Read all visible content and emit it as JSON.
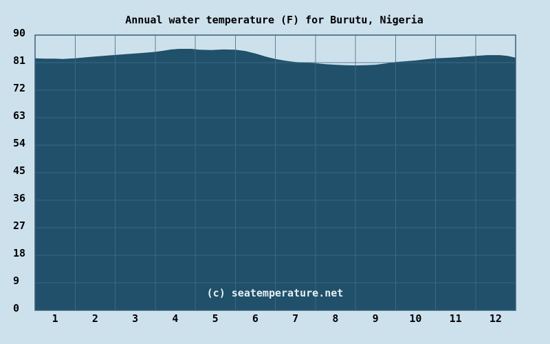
{
  "title": "Annual water temperature (F) for Burutu, Nigeria",
  "watermark": "(c) seatemperature.net",
  "colors": {
    "background": "#cde1ed",
    "area_fill": "#20506a",
    "grid_light": "#5d8096",
    "grid_dark": "#3d6983",
    "border": "#3a5f75",
    "label": "#000000",
    "watermark": "#e6eff5"
  },
  "chart_data": {
    "type": "area",
    "title": "Annual water temperature (F) for Burutu, Nigeria",
    "xlabel": "",
    "ylabel": "",
    "xlim": [
      0,
      12
    ],
    "ylim": [
      0,
      90
    ],
    "grid": true,
    "legend": false,
    "x_ticks": [
      1,
      2,
      3,
      4,
      5,
      6,
      7,
      8,
      9,
      10,
      11,
      12
    ],
    "y_ticks": [
      0,
      9,
      18,
      27,
      36,
      45,
      54,
      63,
      72,
      81,
      90
    ],
    "categories": [
      "1",
      "2",
      "3",
      "4",
      "5",
      "6",
      "7",
      "8",
      "9",
      "10",
      "11",
      "12"
    ],
    "monthly_values_f": [
      82.3,
      83.0,
      84.0,
      85.2,
      85.2,
      83.7,
      81.1,
      80.2,
      80.6,
      82.0,
      82.9,
      83.4
    ],
    "curve_points": [
      [
        0,
        82.4
      ],
      [
        0.25,
        82.3
      ],
      [
        0.5,
        82.3
      ],
      [
        0.7,
        82.2
      ],
      [
        0.9,
        82.35
      ],
      [
        1.0,
        82.4
      ],
      [
        1.25,
        82.7
      ],
      [
        1.5,
        83.0
      ],
      [
        1.75,
        83.25
      ],
      [
        2.0,
        83.5
      ],
      [
        2.25,
        83.75
      ],
      [
        2.5,
        84.0
      ],
      [
        2.75,
        84.25
      ],
      [
        3.0,
        84.5
      ],
      [
        3.2,
        84.9
      ],
      [
        3.4,
        85.3
      ],
      [
        3.6,
        85.5
      ],
      [
        3.9,
        85.5
      ],
      [
        4.1,
        85.2
      ],
      [
        4.4,
        85.1
      ],
      [
        4.7,
        85.3
      ],
      [
        5.0,
        85.2
      ],
      [
        5.25,
        84.8
      ],
      [
        5.5,
        84.0
      ],
      [
        5.75,
        83.0
      ],
      [
        6.0,
        82.2
      ],
      [
        6.25,
        81.6
      ],
      [
        6.5,
        81.2
      ],
      [
        6.75,
        81.0
      ],
      [
        7.0,
        80.8
      ],
      [
        7.25,
        80.5
      ],
      [
        7.5,
        80.3
      ],
      [
        7.75,
        80.15
      ],
      [
        8.0,
        80.1
      ],
      [
        8.25,
        80.15
      ],
      [
        8.5,
        80.3
      ],
      [
        8.75,
        80.7
      ],
      [
        9.0,
        81.2
      ],
      [
        9.25,
        81.45
      ],
      [
        9.5,
        81.7
      ],
      [
        9.75,
        82.05
      ],
      [
        10.0,
        82.4
      ],
      [
        10.25,
        82.55
      ],
      [
        10.5,
        82.7
      ],
      [
        10.75,
        82.95
      ],
      [
        11.0,
        83.2
      ],
      [
        11.3,
        83.45
      ],
      [
        11.6,
        83.45
      ],
      [
        11.8,
        83.2
      ],
      [
        12.0,
        82.6
      ]
    ]
  }
}
